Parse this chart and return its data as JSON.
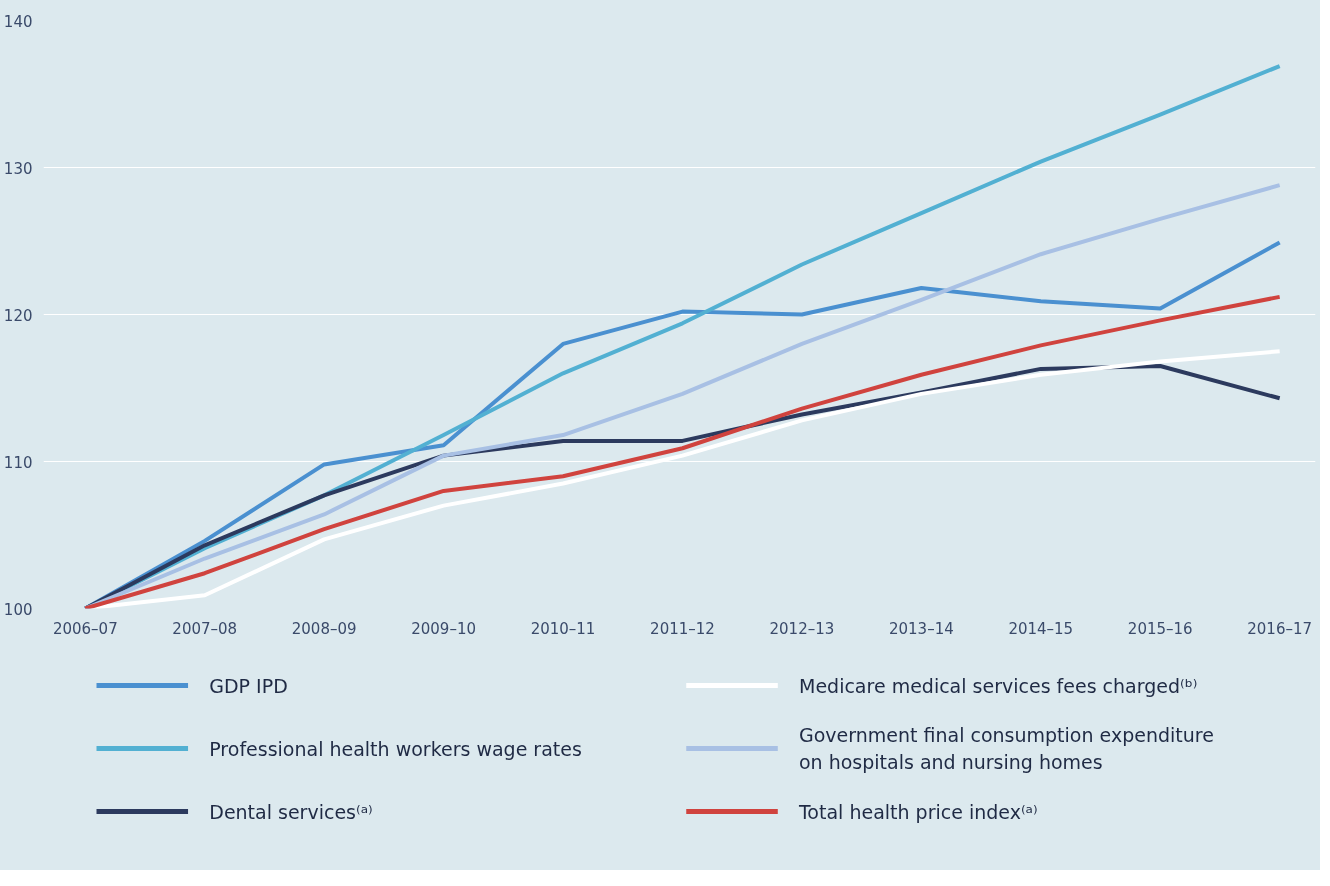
{
  "chart_data": {
    "type": "line",
    "categories": [
      "2006–07",
      "2007–08",
      "2008–09",
      "2009–10",
      "2010–11",
      "2011–12",
      "2012–13",
      "2013–14",
      "2014–15",
      "2015–16",
      "2016–17"
    ],
    "ylim": [
      100,
      140
    ],
    "yticks": [
      100,
      110,
      120,
      130,
      140
    ],
    "grid": "y",
    "legend": "bottom",
    "marker": "none",
    "line_style": "solid",
    "series": [
      {
        "name": "GDP IPD",
        "color": "#4a90d0",
        "values": [
          100,
          104.6,
          109.8,
          111.1,
          118.0,
          120.2,
          120.0,
          121.8,
          120.9,
          120.4,
          124.9
        ]
      },
      {
        "name": "Professional health workers wage rates",
        "color": "#52b0d2",
        "values": [
          100,
          104.1,
          107.7,
          111.8,
          116.0,
          119.4,
          123.4,
          126.9,
          130.4,
          133.6,
          136.9
        ]
      },
      {
        "name": "Dental services⁽ᵃ⁾",
        "color": "#2c3a5e",
        "values": [
          100,
          104.3,
          107.7,
          110.4,
          111.4,
          111.4,
          113.2,
          114.7,
          116.3,
          116.5,
          114.3
        ]
      },
      {
        "name": "Medicare medical services fees charged⁽ᵇ⁾",
        "color": "#ffffff",
        "values": [
          100,
          100.9,
          104.7,
          107.0,
          108.5,
          110.4,
          112.8,
          114.6,
          115.9,
          116.8,
          117.5
        ]
      },
      {
        "name": "Government final consumption expenditure on hospitals and nursing homes",
        "color": "#a8c0e4",
        "values": [
          100,
          103.4,
          106.4,
          110.4,
          111.8,
          114.6,
          118.0,
          121.0,
          124.1,
          126.5,
          128.8
        ]
      },
      {
        "name": "Total health price index⁽ᵃ⁾",
        "color": "#d0433e",
        "values": [
          100,
          102.4,
          105.4,
          108.0,
          109.0,
          110.9,
          113.6,
          115.9,
          117.9,
          119.6,
          121.2
        ]
      }
    ]
  }
}
